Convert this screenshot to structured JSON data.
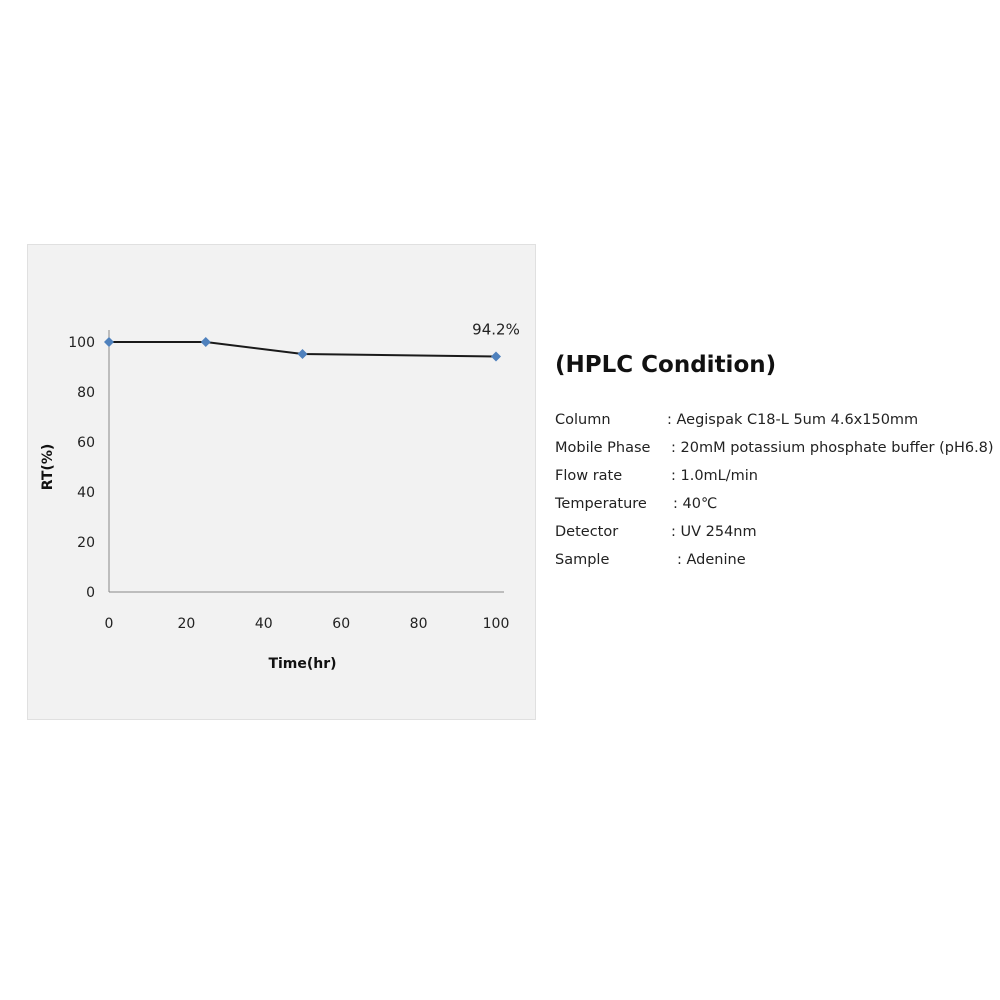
{
  "chart_data": {
    "type": "line",
    "title": "",
    "xlabel": "Time(hr)",
    "ylabel": "RT(%)",
    "xlim": [
      0,
      100
    ],
    "ylim": [
      0,
      100
    ],
    "xticks": [
      0,
      20,
      40,
      60,
      80,
      100
    ],
    "yticks": [
      0,
      20,
      40,
      60,
      80,
      100
    ],
    "grid": false,
    "series": [
      {
        "x": [
          0,
          25,
          50,
          100
        ],
        "y": [
          100,
          100,
          95.2,
          94.2
        ],
        "color": "#4f81bd",
        "line_color": "#1a1a1a",
        "marker": "diamond"
      }
    ],
    "annotations": [
      {
        "x": 100,
        "y": 94.2,
        "text": "94.2%"
      }
    ]
  },
  "conditions": {
    "title": "(HPLC Condition)",
    "rows": [
      {
        "label": "Column",
        "value": ": Aegispak C18-L 5um 4.6x150mm"
      },
      {
        "label": "Mobile Phase",
        "value": ": 20mM  potassium phosphate buffer (pH6.8)"
      },
      {
        "label": "Flow rate",
        "value": ": 1.0mL/min"
      },
      {
        "label": "Temperature",
        "value": ": 40℃"
      },
      {
        "label": "Detector",
        "value": ": UV 254nm"
      },
      {
        "label": "Sample",
        "value": ":  Adenine"
      }
    ]
  }
}
